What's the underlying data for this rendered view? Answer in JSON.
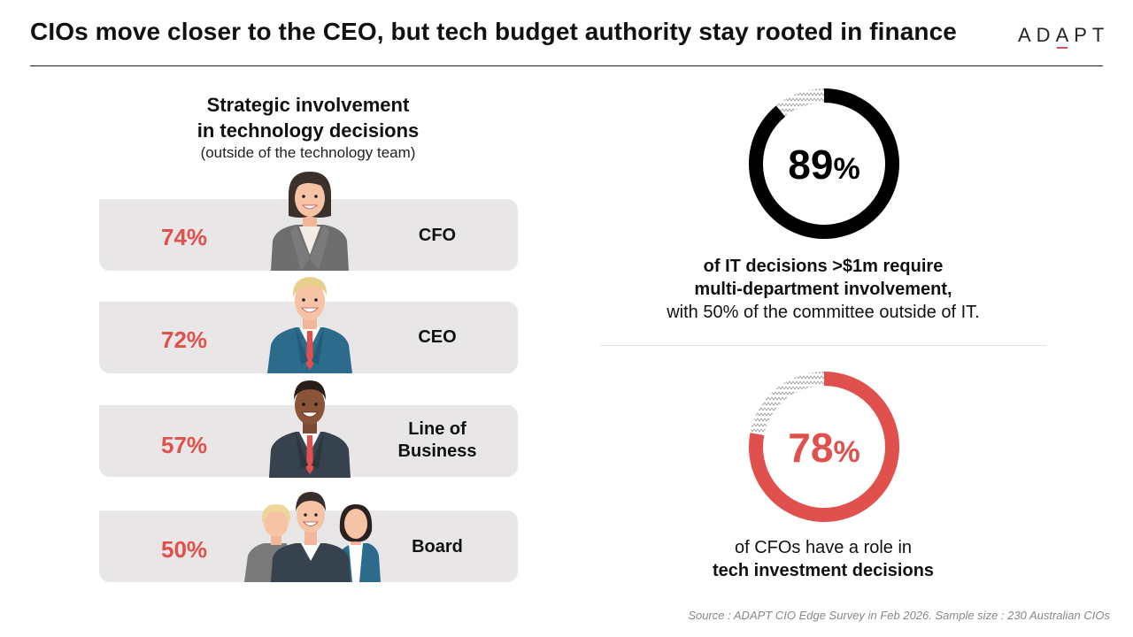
{
  "header": {
    "title": "CIOs move closer to the CEO, but tech budget authority stay rooted in finance",
    "logo": "ADAPT"
  },
  "left_panel": {
    "heading_line1": "Strategic involvement",
    "heading_line2": "in technology decisions",
    "subheading": "(outside of the technology team)"
  },
  "right_panel": {
    "stat1": {
      "value": "89",
      "unit": "%",
      "line1": "of IT decisions >$1m require",
      "line2": "multi-department involvement,",
      "line3": "with 50% of the committee outside of IT."
    },
    "stat2": {
      "value": "78",
      "unit": "%",
      "line1": "of CFOs have a role in",
      "line2": "tech investment decisions"
    }
  },
  "footer": {
    "source": "Source : ADAPT CIO Edge Survey in Feb 2026. Sample size : 230 Australian CIOs"
  },
  "colors": {
    "accent": "#e0504c",
    "bar_bg": "#e8e6e6",
    "ring_dark": "#000000",
    "text": "#111111"
  },
  "chart_data": [
    {
      "type": "bar",
      "title": "Strategic involvement in technology decisions",
      "subtitle": "(outside of the technology team)",
      "categories": [
        "CFO",
        "CEO",
        "Line of Business",
        "Board"
      ],
      "category_lines": [
        [
          "CFO"
        ],
        [
          "CEO"
        ],
        [
          "Line of",
          "Business"
        ],
        [
          "Board"
        ]
      ],
      "values": [
        74,
        72,
        57,
        50
      ],
      "labels": [
        "74%",
        "72%",
        "57%",
        "50%"
      ],
      "unit": "%"
    },
    {
      "type": "pie",
      "title": "of IT decisions >$1m require multi-department involvement",
      "values": [
        89,
        11
      ],
      "labels": [
        "89%",
        ""
      ],
      "colors": [
        "#000000",
        "hatched"
      ]
    },
    {
      "type": "pie",
      "title": "of CFOs have a role in tech investment decisions",
      "values": [
        78,
        22
      ],
      "labels": [
        "78%",
        ""
      ],
      "colors": [
        "#e0504c",
        "hatched"
      ]
    }
  ]
}
